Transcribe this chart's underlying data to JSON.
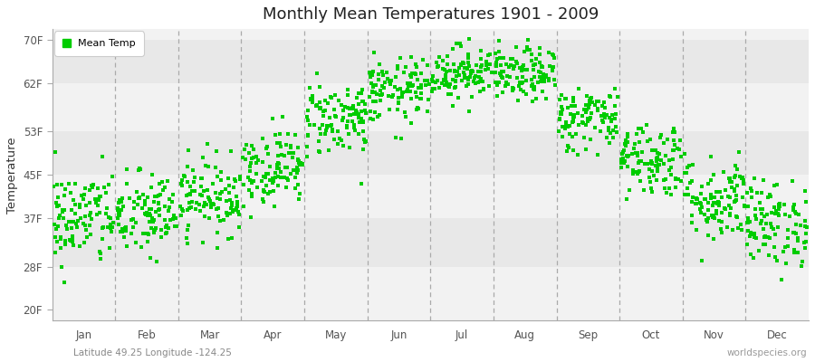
{
  "title": "Monthly Mean Temperatures 1901 - 2009",
  "ylabel": "Temperature",
  "yticks": [
    20,
    28,
    37,
    45,
    53,
    62,
    70
  ],
  "ytick_labels": [
    "20F",
    "28F",
    "37F",
    "45F",
    "53F",
    "62F",
    "70F"
  ],
  "months": [
    "Jan",
    "Feb",
    "Mar",
    "Apr",
    "May",
    "Jun",
    "Jul",
    "Aug",
    "Sep",
    "Oct",
    "Nov",
    "Dec"
  ],
  "dot_color": "#00cc00",
  "bg_color": "#ffffff",
  "plot_bg_light": "#f2f2f2",
  "plot_bg_dark": "#e8e8e8",
  "dashed_line_color": "#aaaaaa",
  "legend_label": "Mean Temp",
  "bottom_left_text": "Latitude 49.25 Longitude -124.25",
  "bottom_right_text": "worldspecies.org",
  "n_years": 109,
  "monthly_means": [
    37.0,
    37.5,
    41.0,
    46.5,
    55.5,
    60.5,
    64.0,
    63.5,
    55.5,
    48.0,
    40.5,
    36.0
  ],
  "monthly_stds": [
    4.5,
    4.0,
    3.5,
    3.5,
    3.5,
    3.0,
    2.5,
    2.5,
    3.0,
    3.5,
    4.0,
    4.0
  ]
}
